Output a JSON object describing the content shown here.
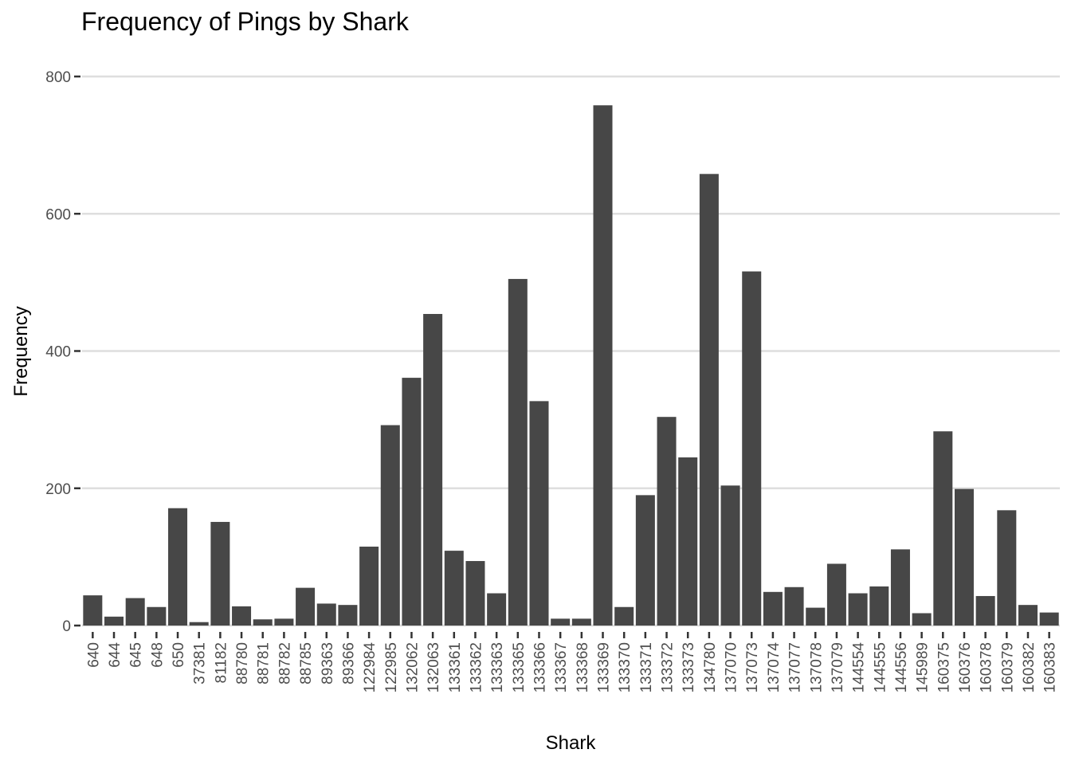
{
  "chart_data": {
    "type": "bar",
    "title": "Frequency of Pings by Shark",
    "xlabel": "Shark",
    "ylabel": "Frequency",
    "ylim": [
      0,
      800
    ],
    "yticks": [
      0,
      200,
      400,
      600,
      800
    ],
    "grid": true,
    "bar_color": "#474747",
    "categories": [
      "640",
      "644",
      "645",
      "648",
      "650",
      "37381",
      "81182",
      "88780",
      "88781",
      "88782",
      "88785",
      "89363",
      "89366",
      "122984",
      "122985",
      "132062",
      "132063",
      "133361",
      "133362",
      "133363",
      "133365",
      "133366",
      "133367",
      "133368",
      "133369",
      "133370",
      "133371",
      "133372",
      "133373",
      "134780",
      "137070",
      "137073",
      "137074",
      "137077",
      "137078",
      "137079",
      "144554",
      "144555",
      "144556",
      "145989",
      "160375",
      "160376",
      "160378",
      "160379",
      "160382",
      "160383"
    ],
    "values": [
      44,
      13,
      40,
      27,
      171,
      5,
      151,
      28,
      9,
      10,
      55,
      32,
      30,
      115,
      292,
      361,
      454,
      109,
      94,
      47,
      505,
      327,
      10,
      10,
      758,
      27,
      190,
      304,
      245,
      658,
      204,
      516,
      49,
      56,
      26,
      90,
      47,
      57,
      111,
      18,
      283,
      199,
      43,
      168,
      30,
      19
    ]
  }
}
